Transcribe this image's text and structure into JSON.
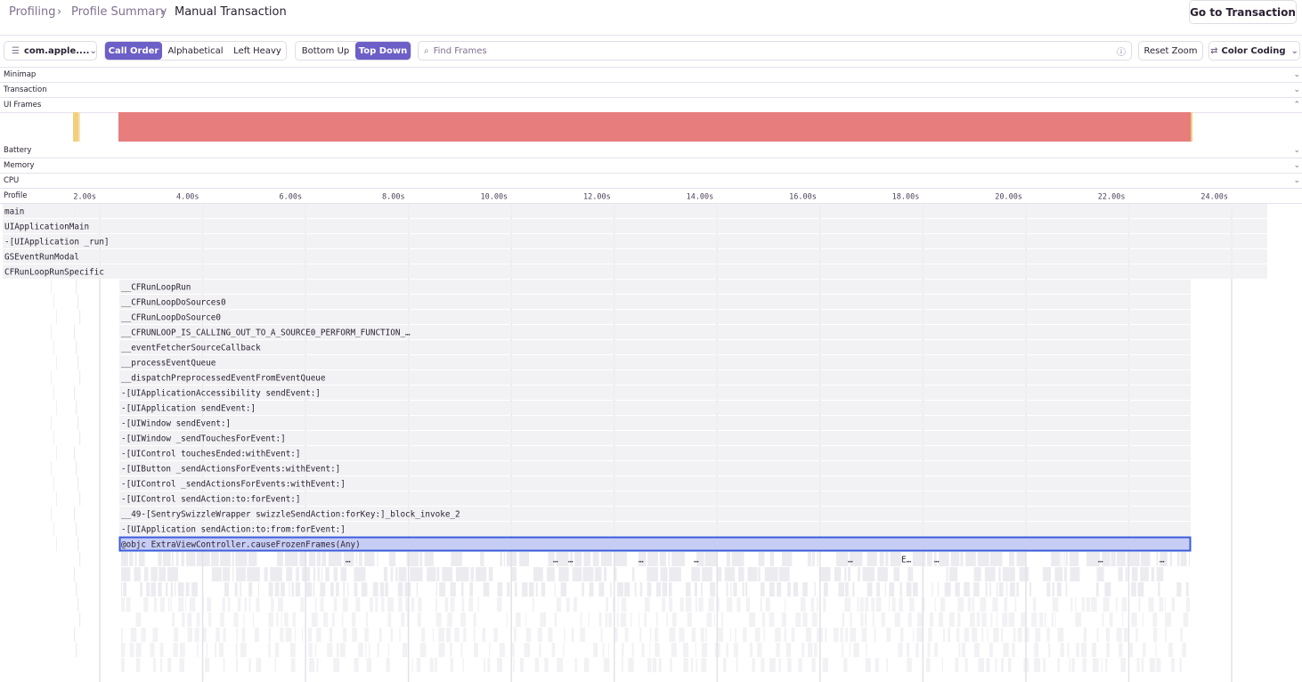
{
  "breadcrumbs": [
    "Profiling",
    "Profile Summary",
    "Manual Transaction"
  ],
  "go_button": "Go to Transaction",
  "toolbar": {
    "thread": "com.apple....",
    "sort_buttons": [
      "Call Order",
      "Alphabetical",
      "Left Heavy"
    ],
    "view_buttons": [
      "Bottom Up",
      "Top Down"
    ],
    "search_placeholder": "Find Frames",
    "reset_zoom": "Reset Zoom",
    "color_coding": "Color Coding"
  },
  "panels": [
    "Minimap",
    "Transaction",
    "UI Frames",
    "Battery",
    "Memory",
    "CPU",
    "Profile"
  ],
  "time_ticks": [
    "2.00s",
    "4.00s",
    "6.00s",
    "8.00s",
    "10.00s",
    "12.00s",
    "14.00s",
    "16.00s",
    "18.00s",
    "20.00s",
    "22.00s",
    "24.00s"
  ],
  "frames": [
    "main",
    "UIApplicationMain",
    "-[UIApplication _run]",
    "GSEventRunModal",
    "CFRunLoopRunSpecific",
    "__CFRunLoopRun",
    "__CFRunLoopDoSources0",
    "__CFRunLoopDoSource0",
    "__CFRUNLOOP_IS_CALLING_OUT_TO_A_SOURCE0_PERFORM_FUNCTION_…",
    "__eventFetcherSourceCallback",
    "__processEventQueue",
    "__dispatchPreprocessedEventFromEventQueue",
    "-[UIApplicationAccessibility sendEvent:]",
    "-[UIApplication sendEvent:]",
    "-[UIWindow sendEvent:]",
    "-[UIWindow _sendTouchesForEvent:]",
    "-[UIControl touchesEnded:withEvent:]",
    "-[UIButton _sendActionsForEvents:withEvent:]",
    "-[UIControl _sendActionsForEvents:withEvent:]",
    "-[UIControl sendAction:to:forEvent:]",
    "__49-[SentrySwizzleWrapper swizzleSendAction:forKey:]_block_invoke_2",
    "-[UIApplication sendAction:to:from:forEvent:]",
    "@objc ExtraViewController.causeFrozenFrames(Any)"
  ],
  "truncated_frames": [
    "…",
    "…",
    "…",
    "…",
    "…",
    "…",
    "E…",
    "…",
    "…",
    "…"
  ]
}
